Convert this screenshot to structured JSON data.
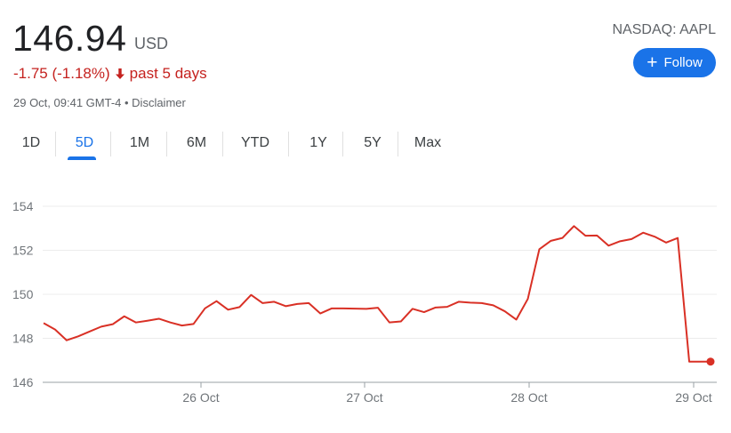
{
  "quote": {
    "price": "146.94",
    "currency": "USD",
    "change": "-1.75 (-1.18%)",
    "period": "past 5 days",
    "timestamp": "29 Oct, 09:41 GMT-4 • Disclaimer",
    "ticker": "NASDAQ: AAPL",
    "follow_label": "Follow"
  },
  "tabs": [
    "1D",
    "5D",
    "1M",
    "6M",
    "YTD",
    "1Y",
    "5Y",
    "Max"
  ],
  "active_tab": "5D",
  "colors": {
    "down": "#c5221f",
    "line": "#d93025",
    "accent": "#1a73e8"
  },
  "chart_data": {
    "type": "area",
    "title": "",
    "xlabel": "",
    "ylabel": "",
    "ylim": [
      146,
      154
    ],
    "y_ticks": [
      "146",
      "148",
      "150",
      "152",
      "154"
    ],
    "x_ticks": [
      "26 Oct",
      "27 Oct",
      "28 Oct",
      "29 Oct"
    ],
    "grid": true,
    "series": [
      {
        "values": [
          148.69,
          148.4,
          147.91,
          148.09,
          148.31,
          148.53,
          148.64,
          149.0,
          148.72,
          148.8,
          148.89,
          148.72,
          148.58,
          148.65,
          149.36,
          149.69,
          149.3,
          149.42,
          149.97,
          149.6,
          149.66,
          149.46,
          149.56,
          149.6,
          149.13,
          149.36,
          149.36,
          149.35,
          149.34,
          149.39,
          148.72,
          148.77,
          149.34,
          149.19,
          149.4,
          149.43,
          149.66,
          149.62,
          149.6,
          149.5,
          149.23,
          148.85,
          149.79,
          152.05,
          152.43,
          152.56,
          153.1,
          152.66,
          152.67,
          152.21,
          152.41,
          152.51,
          152.8,
          152.62,
          152.35,
          152.56,
          146.94,
          146.94
        ]
      }
    ]
  }
}
